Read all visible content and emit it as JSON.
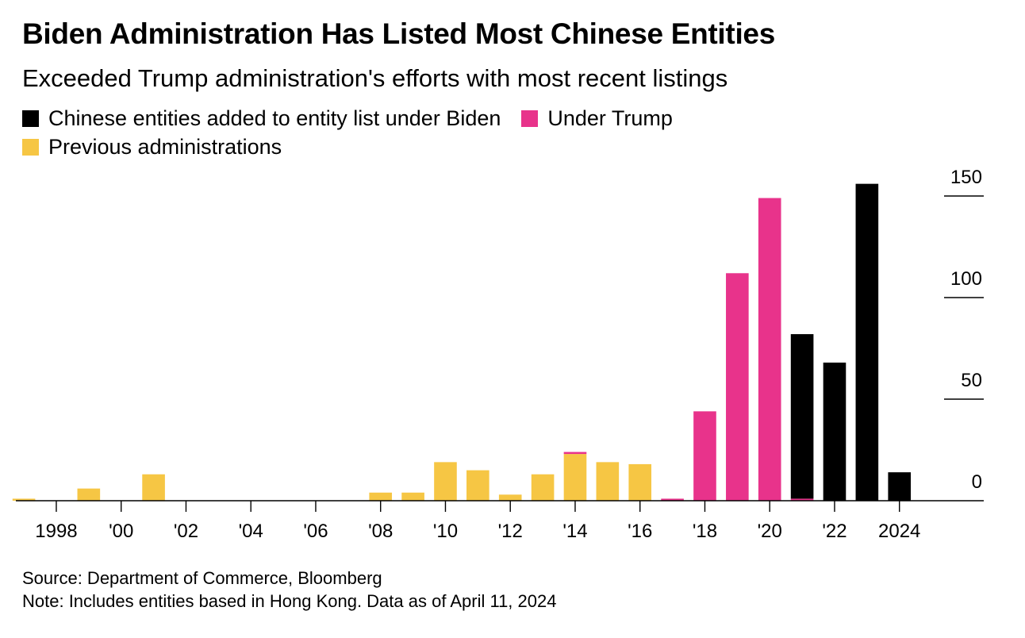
{
  "title": "Biden Administration Has Listed Most Chinese Entities",
  "subtitle": "Exceeded Trump administration's efforts with most recent listings",
  "legend": [
    {
      "label": "Chinese entities added to entity list under Biden",
      "color": "#000000"
    },
    {
      "label": "Under Trump",
      "color": "#e8338b"
    },
    {
      "label": "Previous administrations",
      "color": "#f6c644"
    }
  ],
  "source": "Source: Department of Commerce, Bloomberg",
  "note": "Note: Includes entities based in Hong Kong. Data as of April 11, 2024",
  "chart_data": {
    "type": "bar",
    "stacked": true,
    "x": [
      1997,
      1998,
      1999,
      2000,
      2001,
      2002,
      2003,
      2004,
      2005,
      2006,
      2007,
      2008,
      2009,
      2010,
      2011,
      2012,
      2013,
      2014,
      2015,
      2016,
      2017,
      2018,
      2019,
      2020,
      2021,
      2022,
      2023,
      2024
    ],
    "series": [
      {
        "name": "Previous administrations",
        "color": "#f6c644",
        "values": [
          1,
          0,
          6,
          0,
          13,
          0,
          0,
          0,
          0,
          0,
          0,
          4,
          4,
          19,
          15,
          3,
          13,
          23,
          19,
          18,
          0,
          0,
          0,
          0,
          0,
          0,
          0,
          0
        ]
      },
      {
        "name": "Under Trump",
        "color": "#e8338b",
        "values": [
          0,
          0,
          0,
          0,
          0,
          0,
          0,
          0,
          0,
          0,
          0,
          0,
          0,
          0,
          0,
          0,
          0,
          1,
          0,
          0,
          1,
          44,
          112,
          149,
          1,
          0,
          0,
          0
        ]
      },
      {
        "name": "Chinese entities added to entity list under Biden",
        "color": "#000000",
        "values": [
          0,
          0,
          0,
          0,
          0,
          0,
          0,
          0,
          0,
          0,
          0,
          0,
          0,
          0,
          0,
          0,
          0,
          0,
          0,
          0,
          0,
          0,
          0,
          0,
          81,
          68,
          156,
          14
        ]
      }
    ],
    "x_tick_labels": [
      {
        "x": 1998,
        "label": "1998"
      },
      {
        "x": 2000,
        "label": "'00"
      },
      {
        "x": 2002,
        "label": "'02"
      },
      {
        "x": 2004,
        "label": "'04"
      },
      {
        "x": 2006,
        "label": "'06"
      },
      {
        "x": 2008,
        "label": "'08"
      },
      {
        "x": 2010,
        "label": "'10"
      },
      {
        "x": 2012,
        "label": "'12"
      },
      {
        "x": 2014,
        "label": "'14"
      },
      {
        "x": 2016,
        "label": "'16"
      },
      {
        "x": 2018,
        "label": "'18"
      },
      {
        "x": 2020,
        "label": "'20"
      },
      {
        "x": 2022,
        "label": "'22"
      },
      {
        "x": 2024,
        "label": "2024"
      }
    ],
    "y_ticks": [
      0,
      50,
      100,
      150
    ],
    "ylim": [
      0,
      150
    ],
    "xlim": [
      1996.9,
      2026.6
    ],
    "y_axis_position": "right",
    "grid": false,
    "legend_position": "top-left"
  }
}
